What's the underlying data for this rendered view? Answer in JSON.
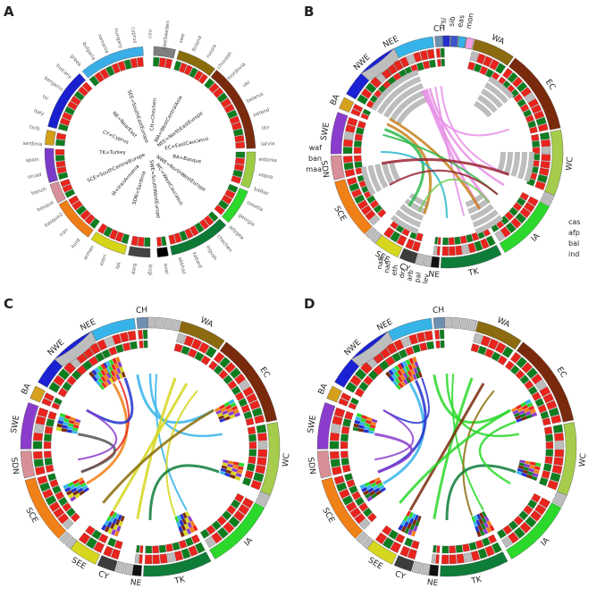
{
  "panels": {
    "A": {
      "label": "A",
      "legend": [
        "CH=Chechen",
        "WA=WestCentralAsia",
        "NEE=NorthEastEurope",
        "EC=EastCaucasus",
        "BA=Basque",
        "NWE=NorthWestEurope",
        "WC=WestCaucasus",
        "SWE=SouthWestEurope",
        "SDN=Sardinia",
        "IA=IranArmenia",
        "SCE=SouthCentralEurope",
        "TK=Turkey",
        "CY=Cyprus",
        "NE=NearEast",
        "SEE=SouthEastEurope"
      ],
      "samples_top": [
        "ceu",
        "sweSweden",
        "swe",
        "finland",
        "russia",
        "chuvash",
        "mordovia",
        "ukr",
        "belarus",
        "poland",
        "litv",
        "latvia",
        "estonia",
        "vepsa"
      ],
      "samples_right": [
        "balkar",
        "ossetia",
        "georgia",
        "adygea",
        "chechen",
        "ingush",
        "kabard",
        "abkhaz",
        "avar",
        "lezgi",
        "darg",
        "lak",
        "azeri",
        "armen",
        "kurd",
        "iran"
      ],
      "samples_left": [
        "basque2",
        "basque",
        "french",
        "orcad",
        "spain",
        "sardinia",
        "tscb",
        "italy",
        "tsi",
        "bergamo",
        "tuscany",
        "greek",
        "bulgaria",
        "romania",
        "hungary",
        "cyprus"
      ],
      "colors": {
        "CH": "#7f7f7f",
        "WA": "#8a6d0b",
        "NEE": "#3aaee6",
        "EC": "#7a2b0e",
        "BA": "#d4a017",
        "NWE": "#1a1fcf",
        "WC": "#9ccc44",
        "SWE": "#7a3cc8",
        "SDN": "#d7909b",
        "IA": "#2bd92b",
        "SCE": "#ee7d17",
        "TK": "#0d7a36",
        "CY": "#444444",
        "NE": "#000000",
        "SEE": "#d4d419"
      }
    },
    "B": {
      "label": "B",
      "outer_regions": [
        "NEE",
        "CH",
        "WA",
        "EC",
        "WC",
        "IA",
        "TK",
        "NE",
        "CY",
        "SEE",
        "SCE",
        "SDN",
        "SWE",
        "BA",
        "NWE"
      ],
      "small_labels_top": [
        "rsi",
        "sib",
        "eas",
        "mon"
      ],
      "small_labels_right": [
        "cas",
        "afp",
        "bal",
        "ind"
      ],
      "small_labels_left": [
        "waf",
        "ban",
        "maa"
      ],
      "small_labels_bottom": [
        "nafi",
        "nafi",
        "eth",
        "drz",
        "arb",
        "pal",
        "lev"
      ]
    },
    "C": {
      "label": "C",
      "regions": [
        "NEE",
        "CH",
        "WA",
        "EC",
        "WC",
        "IA",
        "TK",
        "NE",
        "CY",
        "SEE",
        "SCE",
        "SDN",
        "SWE",
        "BA",
        "NWE"
      ]
    },
    "D": {
      "label": "D",
      "regions": [
        "NEE",
        "CH",
        "WA",
        "EC",
        "WC",
        "IA",
        "TK",
        "NE",
        "CY",
        "SEE",
        "SCE",
        "SDN",
        "SWE",
        "BA",
        "NWE"
      ]
    }
  },
  "region_colors": {
    "NEE": "#36b4ea",
    "CH": "#6f8fb0",
    "WA": "#8b6a10",
    "EC": "#7a2a0c",
    "WC": "#a5cc4a",
    "IA": "#2bd82b",
    "TK": "#0f7d3a",
    "NE": "#111111",
    "CY": "#3c3c3c",
    "SEE": "#d6d61e",
    "SCE": "#f08018",
    "SDN": "#d98f98",
    "SWE": "#8a3ccc",
    "BA": "#d5a11c",
    "NWE": "#1a22d4"
  }
}
